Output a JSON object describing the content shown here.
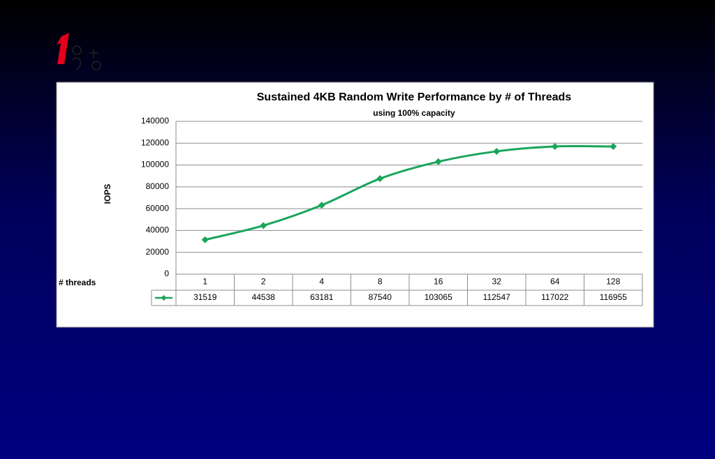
{
  "chart_data": {
    "type": "line",
    "title": "Sustained 4KB Random Write Performance by # of Threads",
    "subtitle": "using 100% capacity",
    "y_label": "IOPS",
    "x_label": "# threads",
    "categories": [
      "1",
      "2",
      "4",
      "8",
      "16",
      "32",
      "64",
      "128"
    ],
    "values": [
      31519,
      44538,
      63181,
      87540,
      103065,
      112547,
      117022,
      116955
    ],
    "color": "#1aa55c",
    "ylim": [
      0,
      140000
    ],
    "yticks": [
      0,
      20000,
      40000,
      60000,
      80000,
      100000,
      120000,
      140000
    ],
    "grid": true
  }
}
